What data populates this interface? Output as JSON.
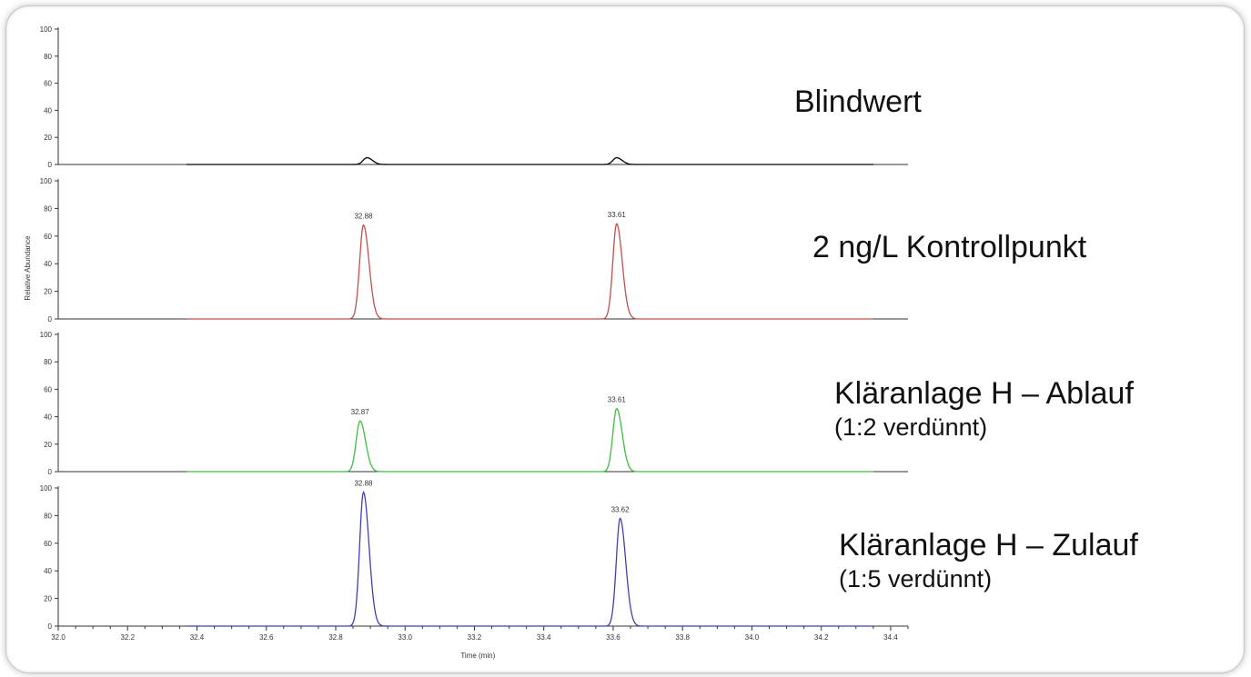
{
  "chart_data": {
    "type": "line",
    "xlabel": "Time (min)",
    "ylabel": "Relative Abundance",
    "xlim": [
      32.0,
      34.45
    ],
    "ylim": [
      0,
      100
    ],
    "x_ticks": [
      "32.0",
      "32.2",
      "32.4",
      "32.6",
      "32.8",
      "33.0",
      "33.2",
      "33.4",
      "33.6",
      "33.8",
      "34.0",
      "34.2",
      "34.4"
    ],
    "y_ticks": [
      "0",
      "20",
      "40",
      "60",
      "80",
      "100"
    ],
    "panels": [
      {
        "title": "Blindwert",
        "subtitle": "",
        "color": "#000000",
        "peaks": [
          {
            "rt": 32.89,
            "height": 5,
            "label": ""
          },
          {
            "rt": 33.61,
            "height": 5,
            "label": ""
          }
        ]
      },
      {
        "title": "2 ng/L Kontrollpunkt",
        "subtitle": "",
        "color": "#c0504d",
        "peaks": [
          {
            "rt": 32.88,
            "height": 68,
            "label": "32.88"
          },
          {
            "rt": 33.61,
            "height": 69,
            "label": "33.61"
          }
        ]
      },
      {
        "title": "Kläranlage H – Ablauf",
        "subtitle": "(1:2 verdünnt)",
        "color": "#3fbf3f",
        "peaks": [
          {
            "rt": 32.87,
            "height": 37,
            "label": "32.87"
          },
          {
            "rt": 33.61,
            "height": 46,
            "label": "33.61"
          }
        ]
      },
      {
        "title": "Kläranlage H – Zulauf",
        "subtitle": "(1:5 verdünnt)",
        "color": "#4040b0",
        "peaks": [
          {
            "rt": 32.88,
            "height": 97,
            "label": "32.88"
          },
          {
            "rt": 33.62,
            "height": 78,
            "label": "33.62"
          }
        ]
      }
    ]
  }
}
